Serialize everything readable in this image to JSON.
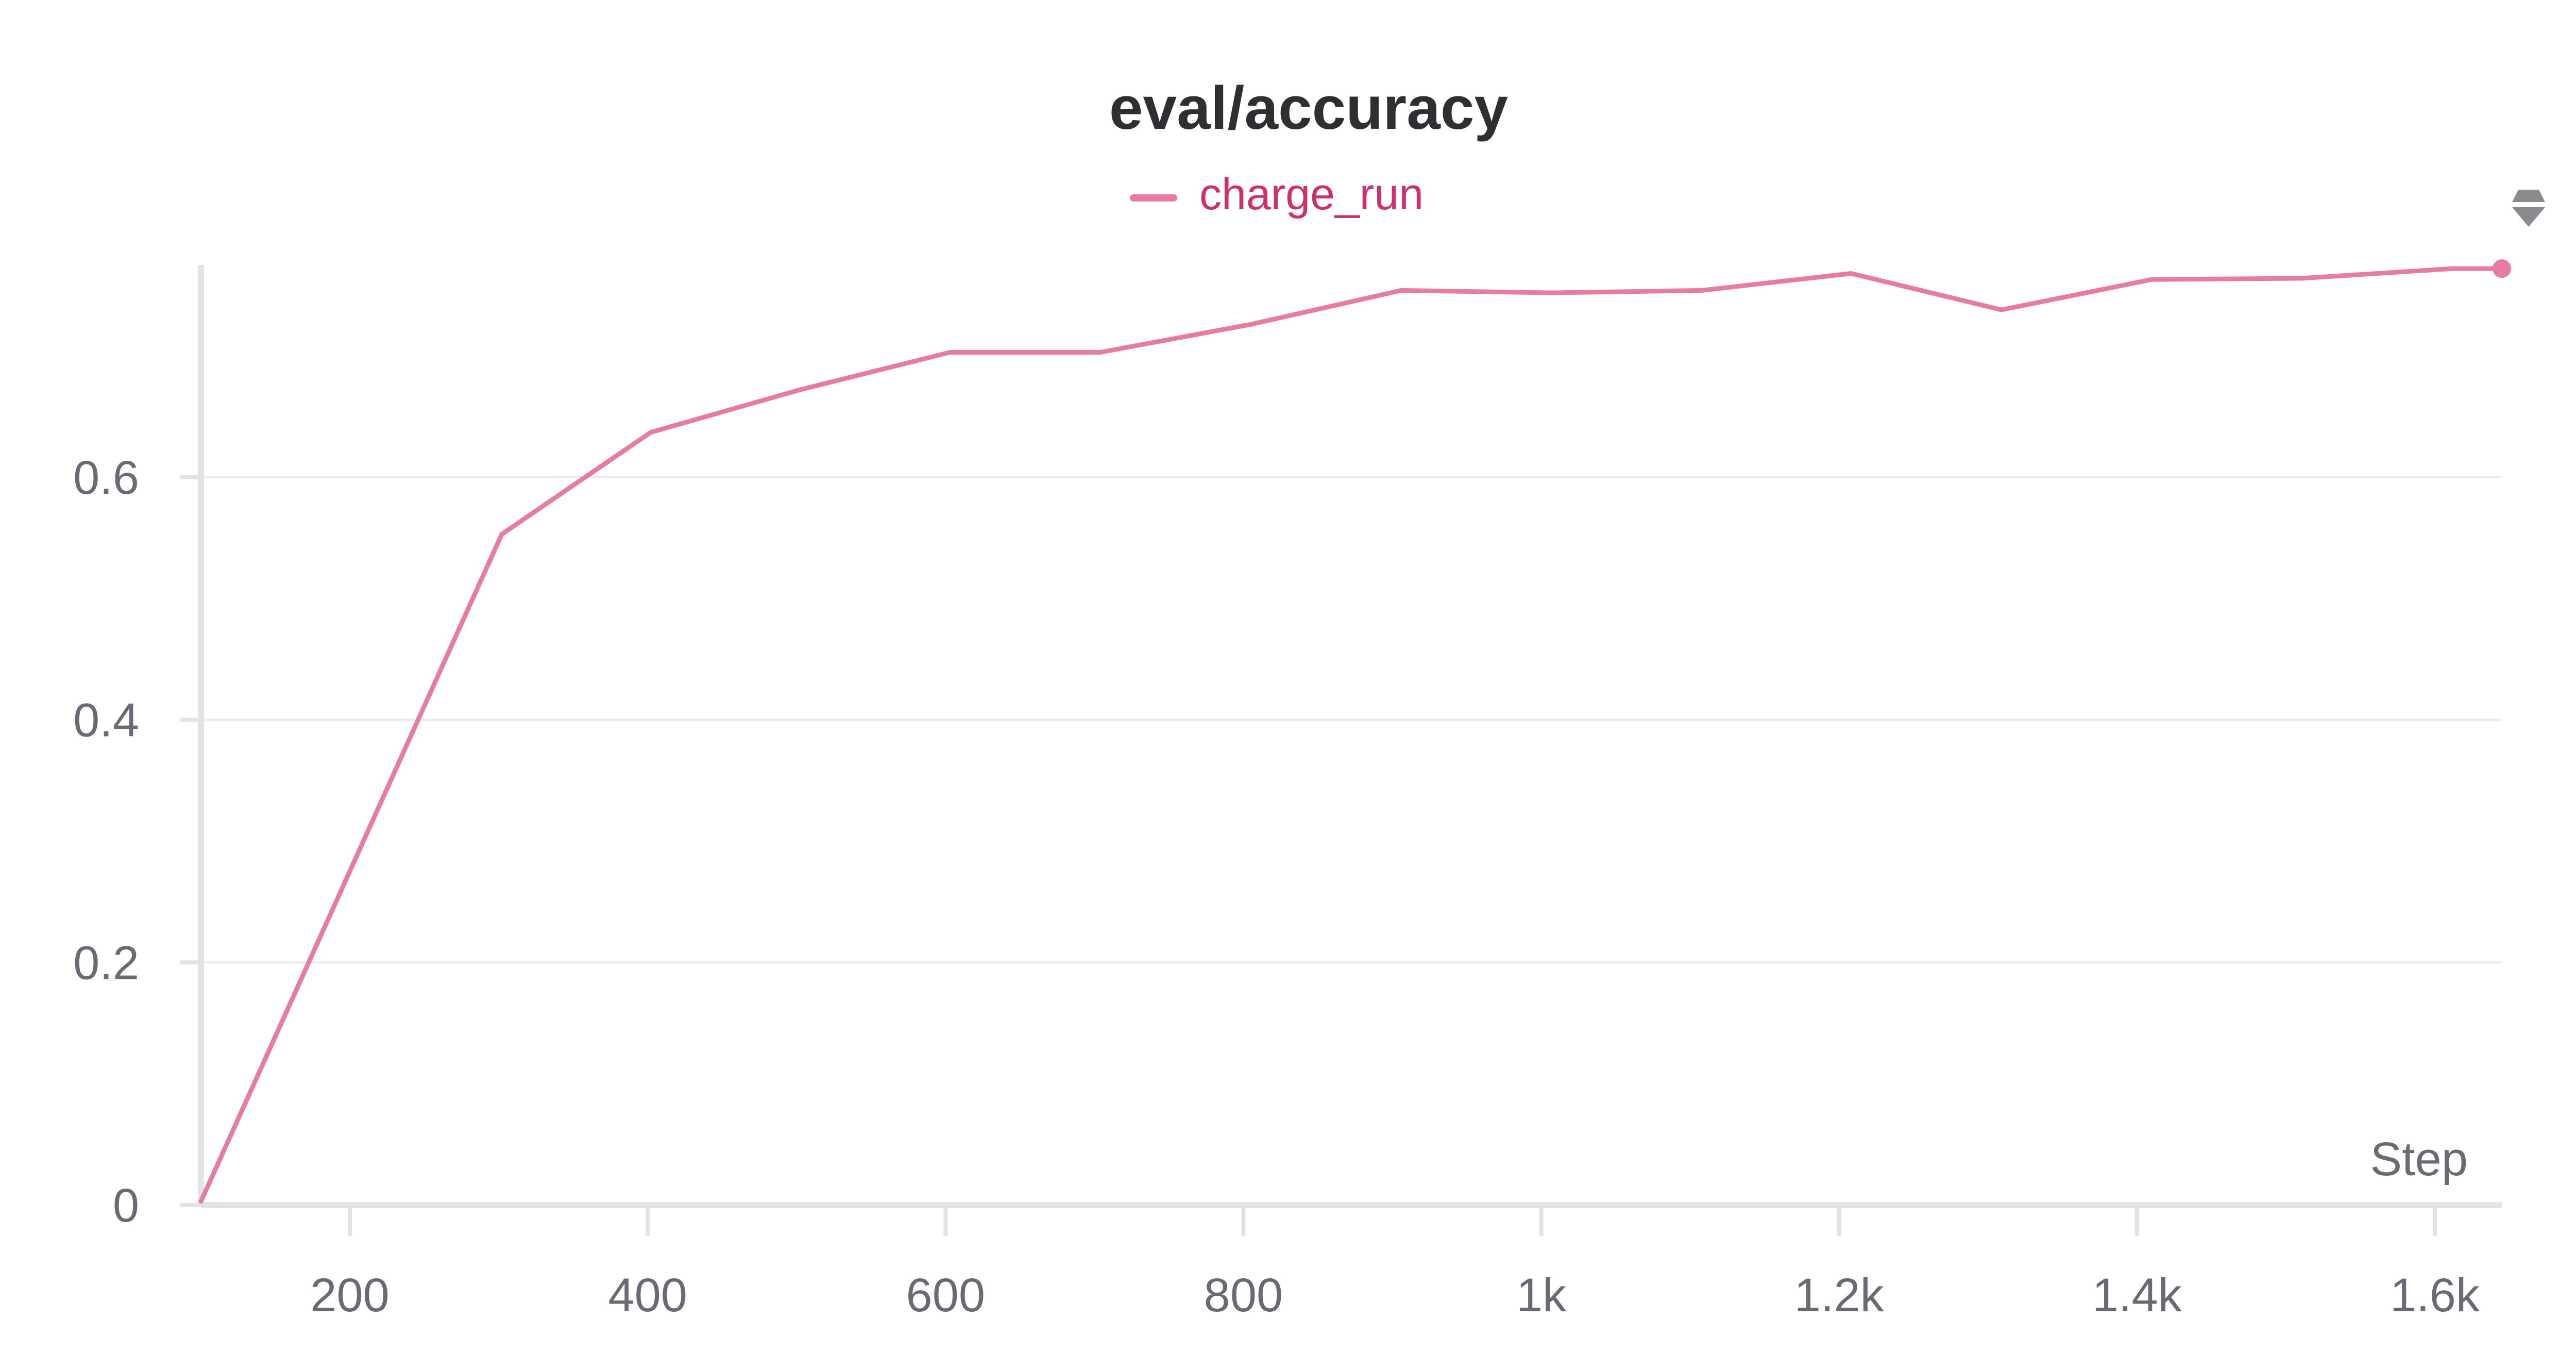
{
  "chart_data": {
    "type": "line",
    "title": "eval/accuracy",
    "xlabel": "Step",
    "ylabel": "",
    "xlim": [
      100,
      1645
    ],
    "ylim": [
      0,
      0.775
    ],
    "x_ticks": [
      200,
      400,
      600,
      800,
      1000,
      1200,
      1400,
      1600
    ],
    "x_tick_labels": [
      "200",
      "400",
      "600",
      "800",
      "1k",
      "1.2k",
      "1.4k",
      "1.6k"
    ],
    "y_ticks": [
      0,
      0.2,
      0.4,
      0.6
    ],
    "y_tick_labels": [
      "0",
      "0.2",
      "0.4",
      "0.6"
    ],
    "grid": true,
    "legend_position": "top-center",
    "series": [
      {
        "name": "charge_run",
        "color": "#e67ba5",
        "x": [
          100,
          302,
          402,
          502,
          603,
          704,
          805,
          906,
          1007,
          1108,
          1208,
          1309,
          1410,
          1511,
          1612,
          1645
        ],
        "values": [
          0.003,
          0.553,
          0.637,
          0.672,
          0.703,
          0.703,
          0.726,
          0.754,
          0.752,
          0.754,
          0.768,
          0.738,
          0.763,
          0.764,
          0.772,
          0.772
        ]
      }
    ]
  },
  "colors": {
    "legend_text": "#cf2f6f",
    "axis": "#e3e3e6",
    "grid": "#ebebed",
    "tick_text": "#6a6a75",
    "title": "#2e2e33",
    "icon": "#8a8a8f"
  },
  "icons": {
    "corner": "sort-arrows-icon"
  }
}
